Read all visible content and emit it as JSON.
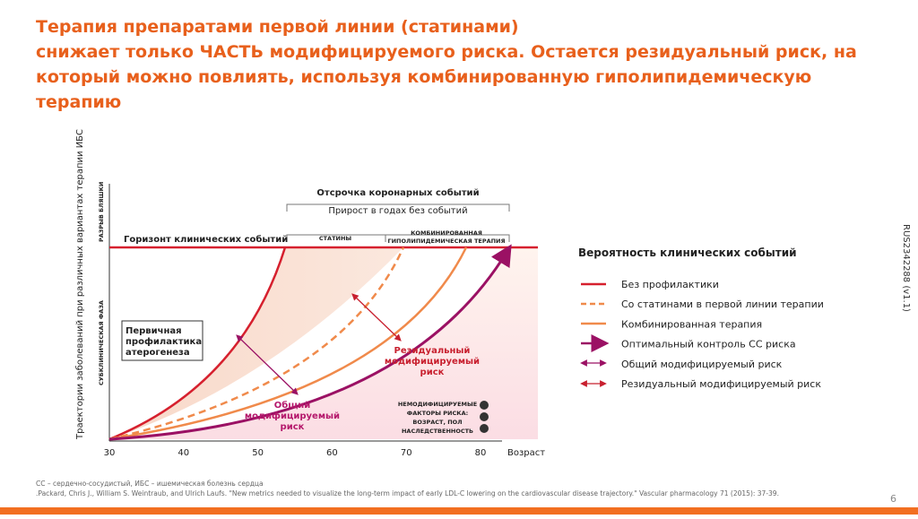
{
  "header": {
    "title": [
      "Терапия препаратами первой линии (статинами)",
      "снижает только ЧАСТЬ модифицируемого риска. Остается резидуальный риск, на",
      "который можно повлиять, используя комбинированную гиполипидемическую",
      "терапию"
    ]
  },
  "chart": {
    "y_axis_label": "Траектории заболеваний при различных вариантах терапии ИБС",
    "phase_labels": [
      "РАЗРЫВ БЛЯШКИ",
      "СУБКЛИНИЧЕСКАЯ ФАЗА"
    ],
    "x_ticks": [
      30,
      40,
      50,
      60,
      70,
      80
    ],
    "x_label": "Возраст",
    "delay_label": "Отсрочка коронарных событий",
    "gain_label": "Прирост в годах без событий",
    "statins_label": "СТАТИНЫ",
    "combo_label": [
      "КОМБИНИРОВАННАЯ",
      "ГИПОЛИПИДЕМИЧЕСКАЯ ТЕРАПИЯ"
    ],
    "horizon_label": "Горизонт клинических событий",
    "primary_label": [
      "Первичная",
      "профилактика",
      "атерогенеза"
    ],
    "residual_label": [
      "Резидуальный",
      "модифицируемый",
      "риск"
    ],
    "total_label": [
      "Общий",
      "модифицируемый",
      "риск"
    ],
    "nonmod_label": [
      "НЕМОДИФИЦИРУЕМЫЕ",
      "ФАКТОРЫ РИСКА:",
      "ВОЗРАСТ, ПОЛ",
      "НАСЛЕДСТВЕННОСТЬ"
    ]
  },
  "legend": {
    "title": "Вероятность клинических событий",
    "items": [
      "Без профилактики",
      "Со статинами в первой линии терапии",
      "Комбинированная терапия",
      "Оптимальный контроль СС риска",
      "Общий модифицируемый риск",
      "Резидуальный модифицируемый риск"
    ]
  },
  "side_code": "RUS2342288 (v1.1)",
  "footnotes": [
    "СС – сердечно-сосудистый, ИБС – ишемическая болезнь сердца",
    ".Packard, Chris J., William S. Weintraub, and Ulrich Laufs. \"New metrics needed to visualize the long-term impact of early LDL-C lowering on the cardiovascular disease trajectory.\" Vascular pharmacology 71 (2015): 37-39."
  ],
  "page_number": 6
}
